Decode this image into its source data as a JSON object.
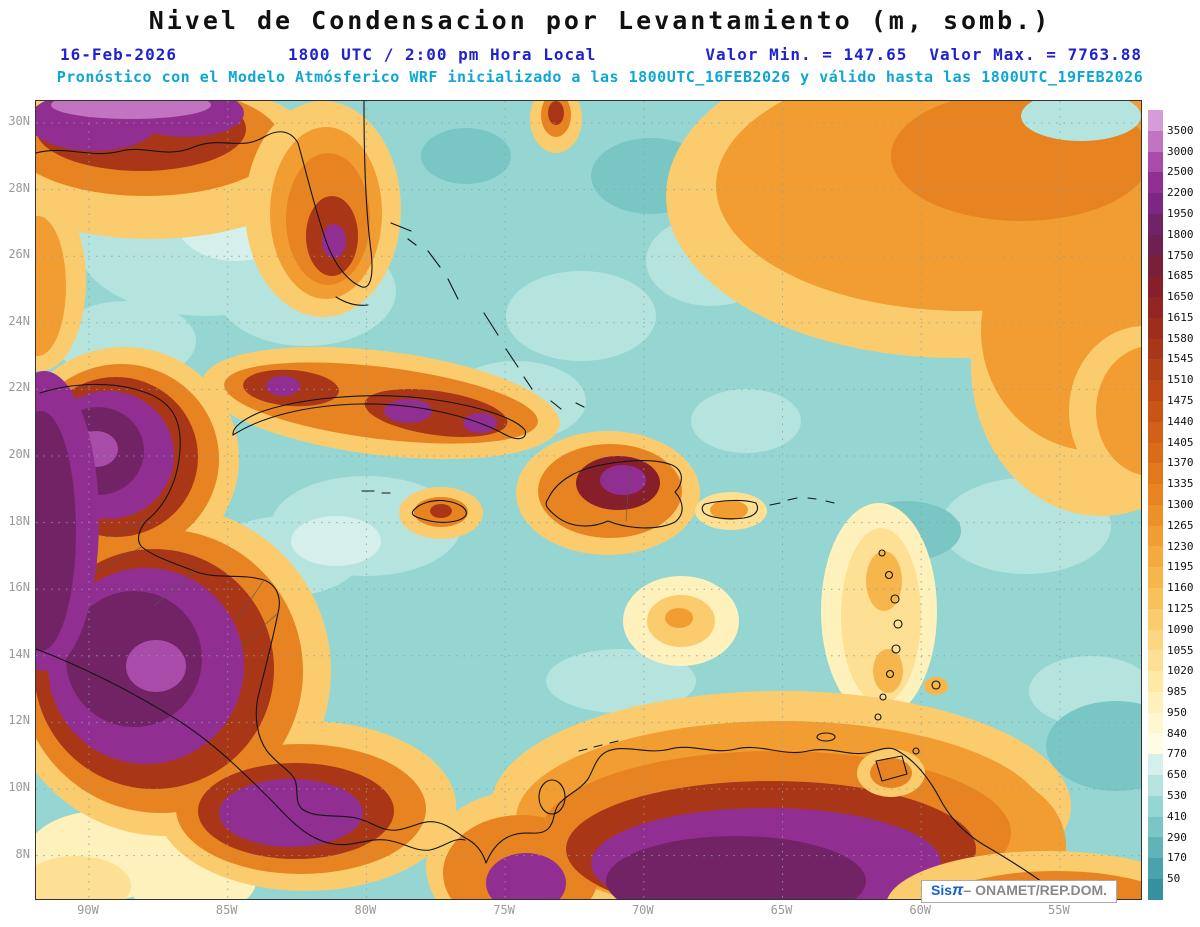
{
  "title": "Nivel de Condensacion por Levantamiento (m, somb.)",
  "header": {
    "date": "16-Feb-2026",
    "time": "1800 UTC / 2:00 pm Hora Local",
    "min": "Valor Min. = 147.65",
    "max": "Valor Max. = 7763.88",
    "forecast": "Pronóstico con el Modelo Atmósferico WRF inicializado a las 1800UTC_16FEB2026 y válido hasta las  1800UTC_19FEB2026"
  },
  "axes": {
    "lat": [
      "30N",
      "28N",
      "26N",
      "24N",
      "22N",
      "20N",
      "18N",
      "16N",
      "14N",
      "12N",
      "10N",
      "8N"
    ],
    "lon": [
      "90W",
      "85W",
      "80W",
      "75W",
      "70W",
      "65W",
      "60W",
      "55W"
    ]
  },
  "colorbar": {
    "labels": [
      "3500",
      "3000",
      "2500",
      "2200",
      "1950",
      "1800",
      "1750",
      "1685",
      "1650",
      "1615",
      "1580",
      "1545",
      "1510",
      "1475",
      "1440",
      "1405",
      "1370",
      "1335",
      "1300",
      "1265",
      "1230",
      "1195",
      "1160",
      "1125",
      "1090",
      "1055",
      "1020",
      "985",
      "950",
      "840",
      "770",
      "650",
      "530",
      "410",
      "290",
      "170",
      "50"
    ],
    "colors": [
      "#D79BD7",
      "#C273C2",
      "#A94BA9",
      "#912E91",
      "#7E2683",
      "#722366",
      "#6E2050",
      "#7A1F3A",
      "#871F2B",
      "#932520",
      "#9F2D1B",
      "#AA3618",
      "#B54016",
      "#BF4A15",
      "#C95515",
      "#D26016",
      "#DA6C18",
      "#E1781C",
      "#E78421",
      "#EC9128",
      "#F19D31",
      "#F4AA3D",
      "#F7B64B",
      "#F9C15B",
      "#FBCC6D",
      "#FCD680",
      "#FDE093",
      "#FEE9A7",
      "#FEF1BB",
      "#FFF7D0",
      "#FFFCE4",
      "#D5F0EA",
      "#B5E4DE",
      "#96D6D2",
      "#7AC6C5",
      "#60B4B9",
      "#4AA2AC",
      "#37909F"
    ]
  },
  "branding": {
    "sis": "Sis",
    "pi": "π",
    "rest": "– ONAMET/REP.DOM."
  },
  "chart_data": {
    "type": "heatmap",
    "title": "Nivel de Condensacion por Levantamiento (m, somb.)",
    "units": "m",
    "value_min": 147.65,
    "value_max": 7763.88,
    "extent": {
      "lon_ticks": [
        "90W",
        "85W",
        "80W",
        "75W",
        "70W",
        "65W",
        "60W",
        "55W"
      ],
      "lat_ticks": [
        "30N",
        "28N",
        "26N",
        "24N",
        "22N",
        "20N",
        "18N",
        "16N",
        "14N",
        "12N",
        "10N",
        "8N"
      ]
    },
    "scale_levels": [
      50,
      170,
      290,
      410,
      530,
      650,
      770,
      840,
      950,
      985,
      1020,
      1055,
      1090,
      1125,
      1160,
      1195,
      1230,
      1265,
      1300,
      1335,
      1370,
      1405,
      1440,
      1475,
      1510,
      1545,
      1580,
      1615,
      1650,
      1685,
      1750,
      1800,
      1950,
      2200,
      2500,
      3000,
      3500
    ],
    "legend_position": "right"
  }
}
